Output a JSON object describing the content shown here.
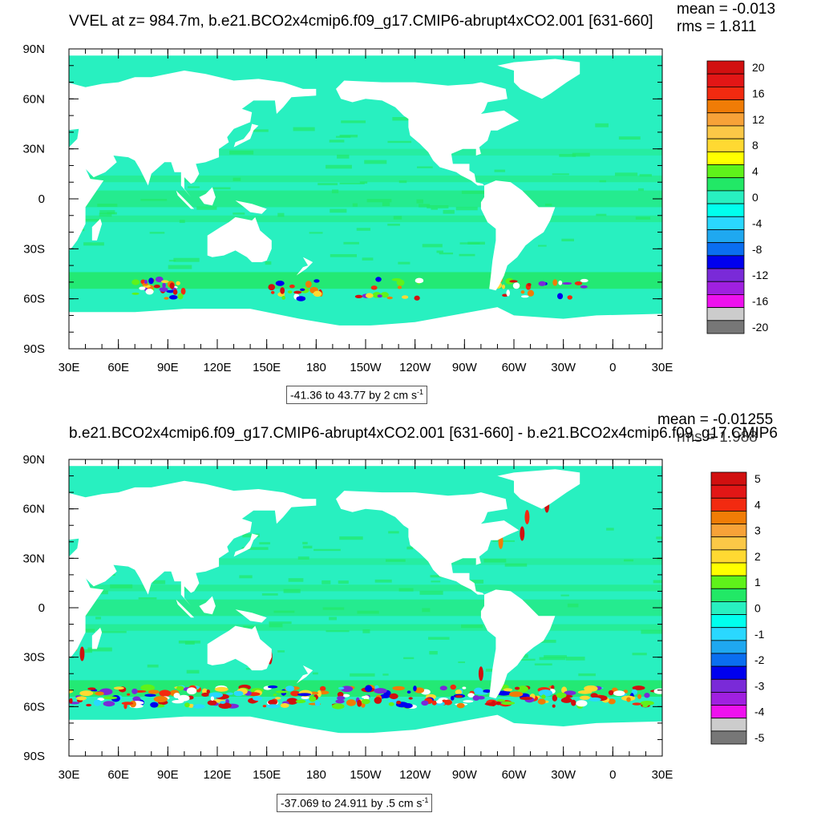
{
  "panels": [
    {
      "title": "VVEL at z= 984.7m, b.e21.BCO2x4cmip6.f09_g17.CMIP6-abrupt4xCO2.001 [631-660]",
      "mean_label": "mean = -0.013",
      "rms_label": "rms = 1.811",
      "range_label": "-41.36 to 43.77 by 2 cm s",
      "range_exp": "-1",
      "colorbar_labels": [
        "20",
        "16",
        "12",
        "8",
        "4",
        "0",
        "-4",
        "-8",
        "-12",
        "-16",
        "-20"
      ]
    },
    {
      "title": "b.e21.BCO2x4cmip6.f09_g17.CMIP6-abrupt4xCO2.001 [631-660] - b.e21.BCO2x4cmip6.f09_g17.CMIP6",
      "mean_label": "mean = -0.01255",
      "rms_label": "rms = 1.988",
      "range_label": "-37.069 to 24.911 by .5 cm s",
      "range_exp": "-1",
      "colorbar_labels": [
        "5",
        "4",
        "3",
        "2",
        "1",
        "0",
        "-1",
        "-2",
        "-3",
        "-4",
        "-5"
      ]
    }
  ],
  "colors": {
    "palette": [
      "#d11010",
      "#e21616",
      "#f22a10",
      "#f07c06",
      "#f7a238",
      "#fbc847",
      "#ffd932",
      "#ffff00",
      "#5ff21a",
      "#22e866",
      "#28f0c0",
      "#00ffee",
      "#2ad8ff",
      "#1fa8f0",
      "#0a6ef0",
      "#0000ee",
      "#7a2ad8",
      "#a020e0",
      "#ee11ee",
      "#cccccc",
      "#777777"
    ],
    "land": "#ffffff",
    "ocean_base": "#28f0c0",
    "ocean_shallow": "#22e866"
  },
  "chart_data": [
    {
      "type": "heatmap",
      "map_projection": "cylindrical-equidistant",
      "x_tick_labels": [
        "30E",
        "60E",
        "90E",
        "120E",
        "150E",
        "180",
        "150W",
        "120W",
        "90W",
        "60W",
        "30W",
        "0",
        "30E"
      ],
      "y_tick_labels": [
        "90N",
        "60N",
        "30N",
        "0",
        "30S",
        "60S",
        "90S"
      ],
      "xlim": [
        30,
        390
      ],
      "ylim": [
        -90,
        90
      ],
      "contour_min": -41.36,
      "contour_max": 43.77,
      "contour_interval": 2,
      "units": "cm s-1",
      "colorbar_levels": [
        20,
        16,
        12,
        8,
        4,
        0,
        -4,
        -8,
        -12,
        -16,
        -20
      ]
    },
    {
      "type": "heatmap",
      "map_projection": "cylindrical-equidistant",
      "x_tick_labels": [
        "30E",
        "60E",
        "90E",
        "120E",
        "150E",
        "180",
        "150W",
        "120W",
        "90W",
        "60W",
        "30W",
        "0",
        "30E"
      ],
      "y_tick_labels": [
        "90N",
        "60N",
        "30N",
        "0",
        "30S",
        "60S",
        "90S"
      ],
      "xlim": [
        30,
        390
      ],
      "ylim": [
        -90,
        90
      ],
      "contour_min": -37.069,
      "contour_max": 24.911,
      "contour_interval": 0.5,
      "units": "cm s-1",
      "colorbar_levels": [
        5,
        4,
        3,
        2,
        1,
        0,
        -1,
        -2,
        -3,
        -4,
        -5
      ]
    }
  ]
}
